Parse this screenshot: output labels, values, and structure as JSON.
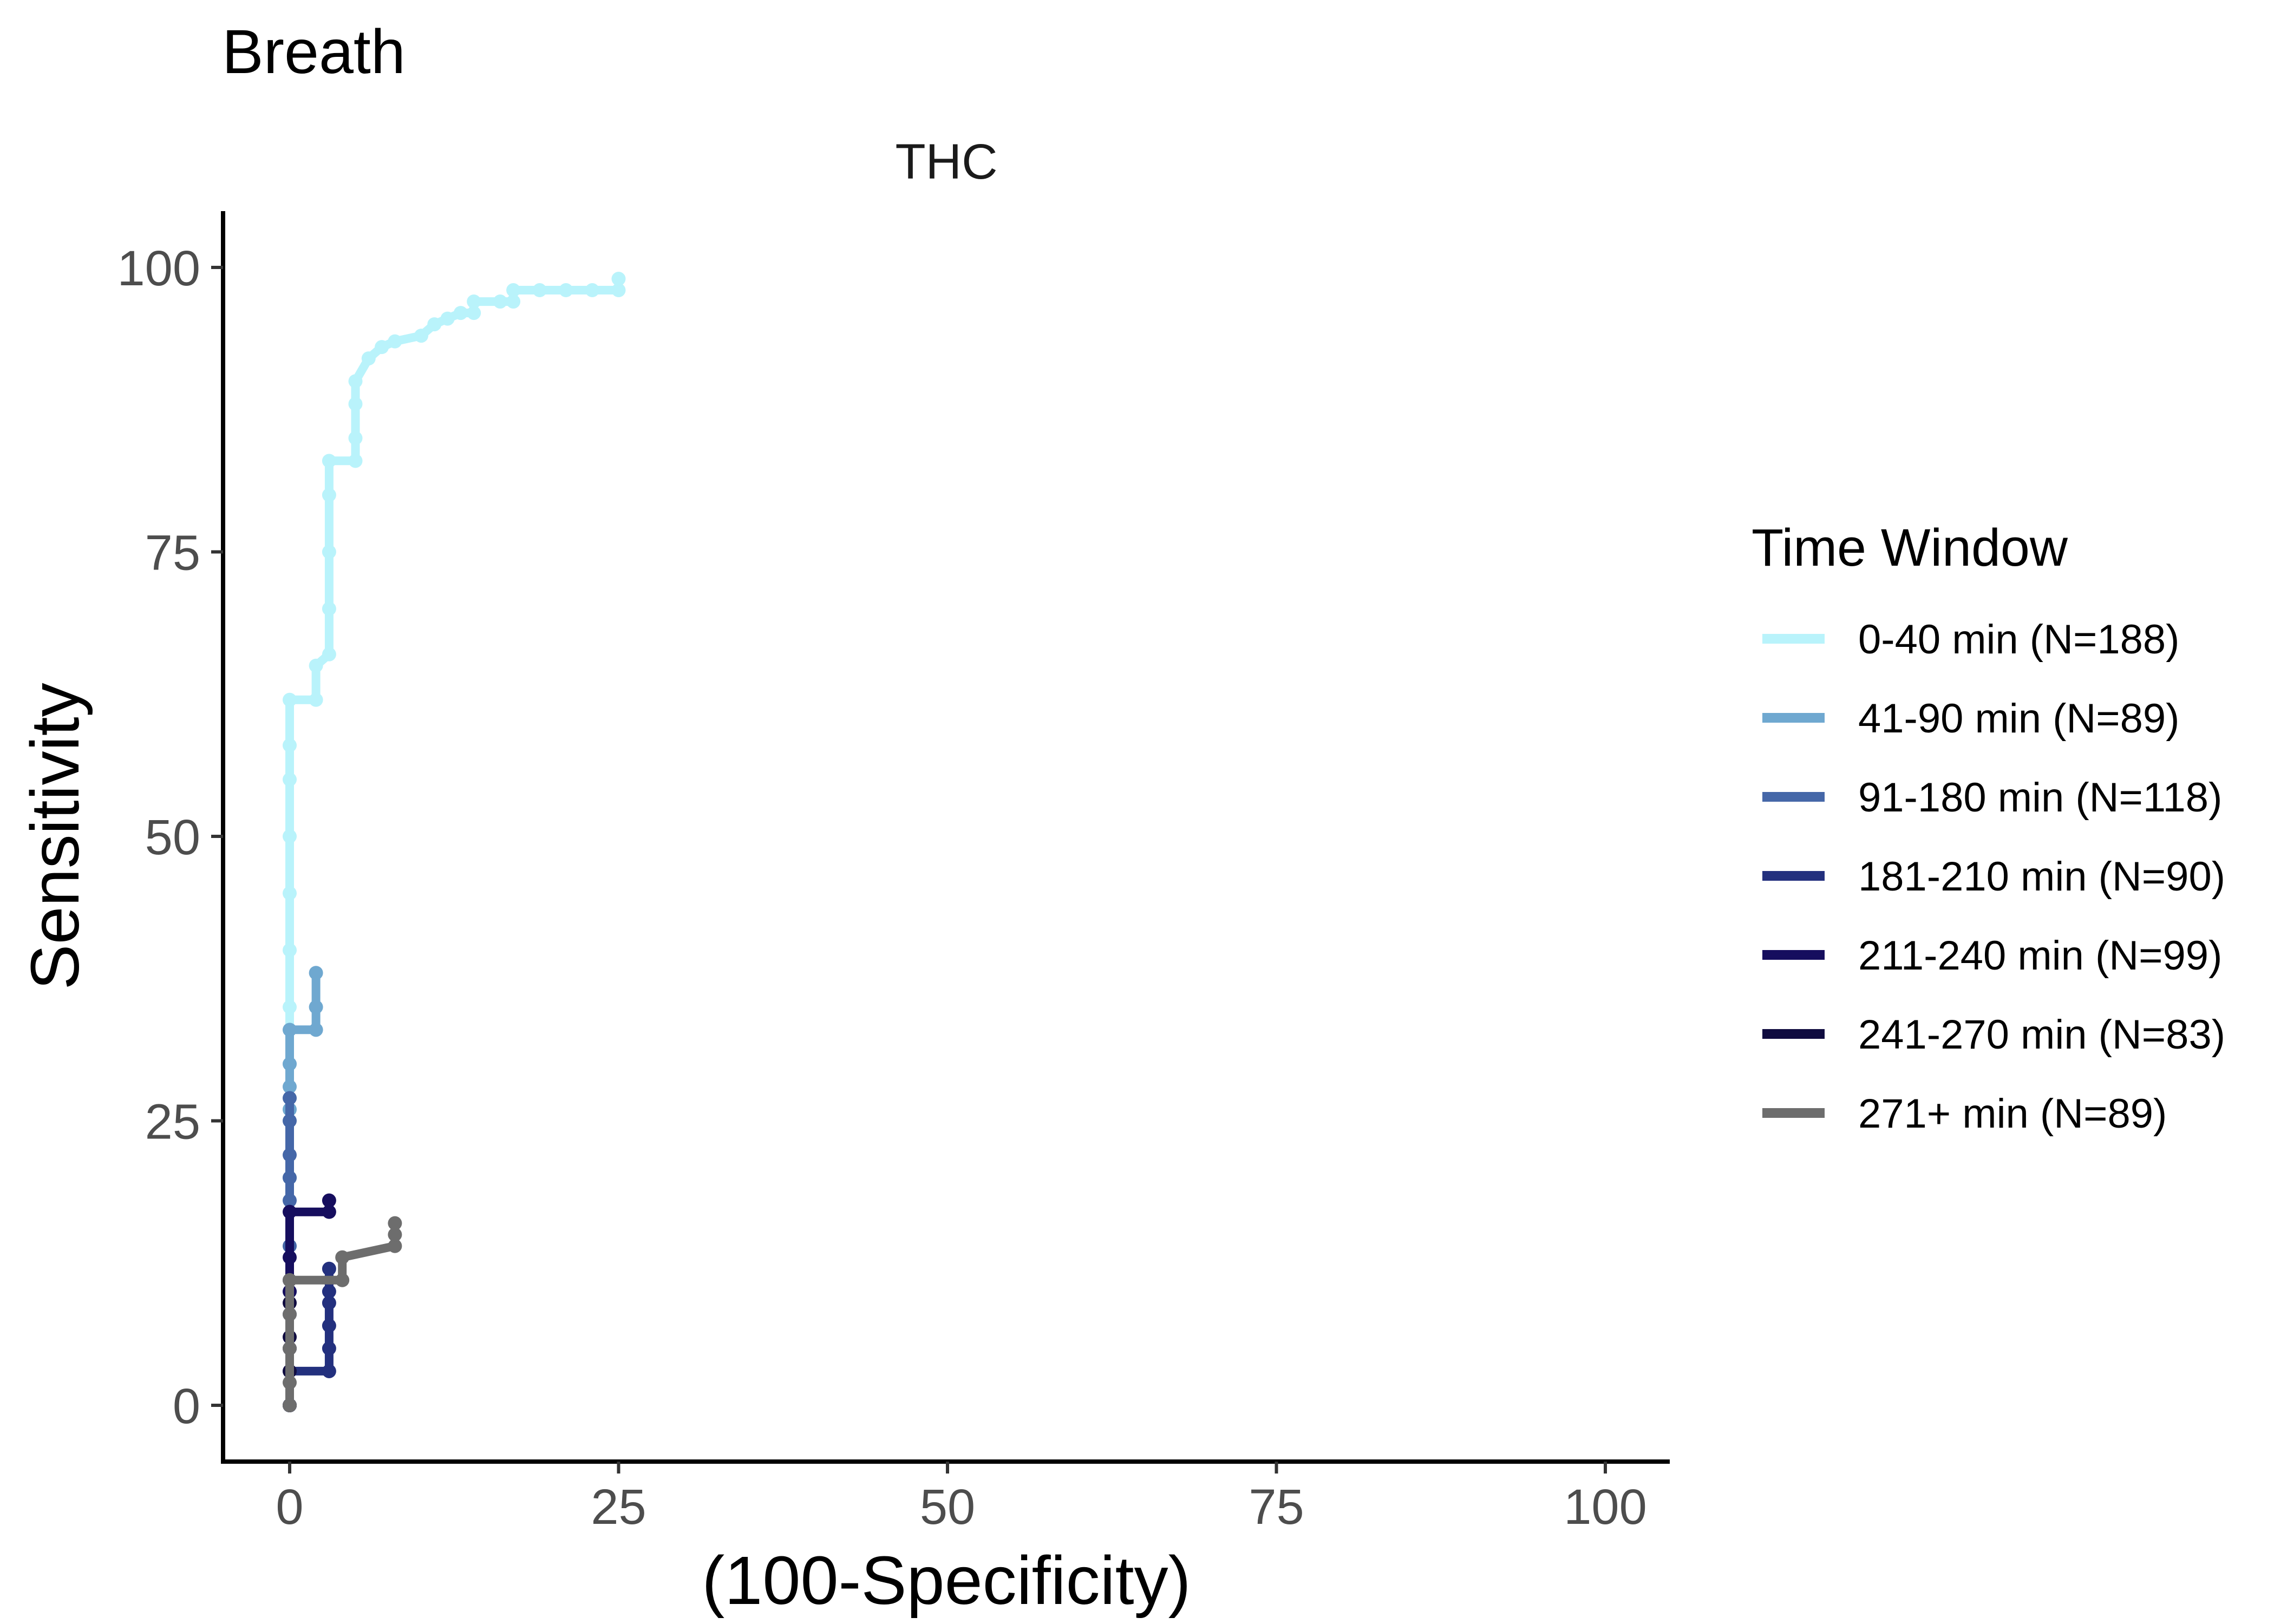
{
  "chart_data": {
    "type": "line",
    "title": "Breath",
    "facet_label": "THC",
    "xlabel": "(100-Specificity)",
    "ylabel": "Sensitivity",
    "xlim": [
      -5,
      105
    ],
    "ylim": [
      -5,
      105
    ],
    "x_ticks": [
      0,
      25,
      50,
      75,
      100
    ],
    "y_ticks": [
      0,
      25,
      50,
      75,
      100
    ],
    "grid": false,
    "legend": {
      "title": "Time Window",
      "position": "right"
    },
    "series": [
      {
        "name": "0-40 min (N=188)",
        "color": "#b9f3fb",
        "points": [
          [
            0,
            0
          ],
          [
            0,
            10
          ],
          [
            0,
            20
          ],
          [
            0,
            30
          ],
          [
            0,
            35
          ],
          [
            0,
            40
          ],
          [
            0,
            45
          ],
          [
            0,
            50
          ],
          [
            0,
            55
          ],
          [
            0,
            58
          ],
          [
            0,
            62
          ],
          [
            2,
            62
          ],
          [
            2,
            65
          ],
          [
            3,
            66
          ],
          [
            3,
            70
          ],
          [
            3,
            75
          ],
          [
            3,
            80
          ],
          [
            3,
            83
          ],
          [
            5,
            83
          ],
          [
            5,
            85
          ],
          [
            5,
            88
          ],
          [
            5,
            90
          ],
          [
            6,
            92
          ],
          [
            7,
            93
          ],
          [
            8,
            93.5
          ],
          [
            10,
            94
          ],
          [
            11,
            95
          ],
          [
            12,
            95.5
          ],
          [
            13,
            96
          ],
          [
            14,
            96
          ],
          [
            14,
            97
          ],
          [
            16,
            97
          ],
          [
            17,
            97
          ],
          [
            17,
            98
          ],
          [
            19,
            98
          ],
          [
            21,
            98
          ],
          [
            23,
            98
          ],
          [
            25,
            98
          ],
          [
            25,
            99
          ]
        ]
      },
      {
        "name": "41-90 min (N=89)",
        "color": "#6fa8d0",
        "points": [
          [
            0,
            0
          ],
          [
            0,
            10
          ],
          [
            0,
            20
          ],
          [
            0,
            26
          ],
          [
            0,
            28
          ],
          [
            0,
            30
          ],
          [
            0,
            33
          ],
          [
            2,
            33
          ],
          [
            2,
            35
          ],
          [
            2,
            38
          ]
        ]
      },
      {
        "name": "91-180 min (N=118)",
        "color": "#4567a8",
        "points": [
          [
            0,
            0
          ],
          [
            0,
            8
          ],
          [
            0,
            14
          ],
          [
            0,
            18
          ],
          [
            0,
            20
          ],
          [
            0,
            22
          ],
          [
            0,
            25
          ],
          [
            0,
            27
          ]
        ]
      },
      {
        "name": "181-210 min (N=90)",
        "color": "#23307e",
        "points": [
          [
            0,
            0
          ],
          [
            0,
            3
          ],
          [
            3,
            3
          ],
          [
            3,
            5
          ],
          [
            3,
            7
          ],
          [
            3,
            9
          ],
          [
            3,
            10
          ],
          [
            3,
            12
          ]
        ]
      },
      {
        "name": "211-240 min (N=99)",
        "color": "#160e5e",
        "points": [
          [
            0,
            0
          ],
          [
            0,
            5
          ],
          [
            0,
            10
          ],
          [
            0,
            13
          ],
          [
            0,
            17
          ],
          [
            3,
            17
          ],
          [
            3,
            18
          ]
        ]
      },
      {
        "name": "241-270 min (N=83)",
        "color": "#100c40",
        "points": [
          [
            0,
            0
          ],
          [
            0,
            3
          ],
          [
            0,
            6
          ],
          [
            0,
            9
          ],
          [
            0,
            11
          ]
        ]
      },
      {
        "name": "271+ min (N=89)",
        "color": "#6d6d6d",
        "points": [
          [
            0,
            0
          ],
          [
            0,
            2
          ],
          [
            0,
            5
          ],
          [
            0,
            8
          ],
          [
            0,
            11
          ],
          [
            4,
            11
          ],
          [
            4,
            13
          ],
          [
            8,
            14
          ],
          [
            8,
            15
          ],
          [
            8,
            16
          ]
        ]
      }
    ]
  }
}
